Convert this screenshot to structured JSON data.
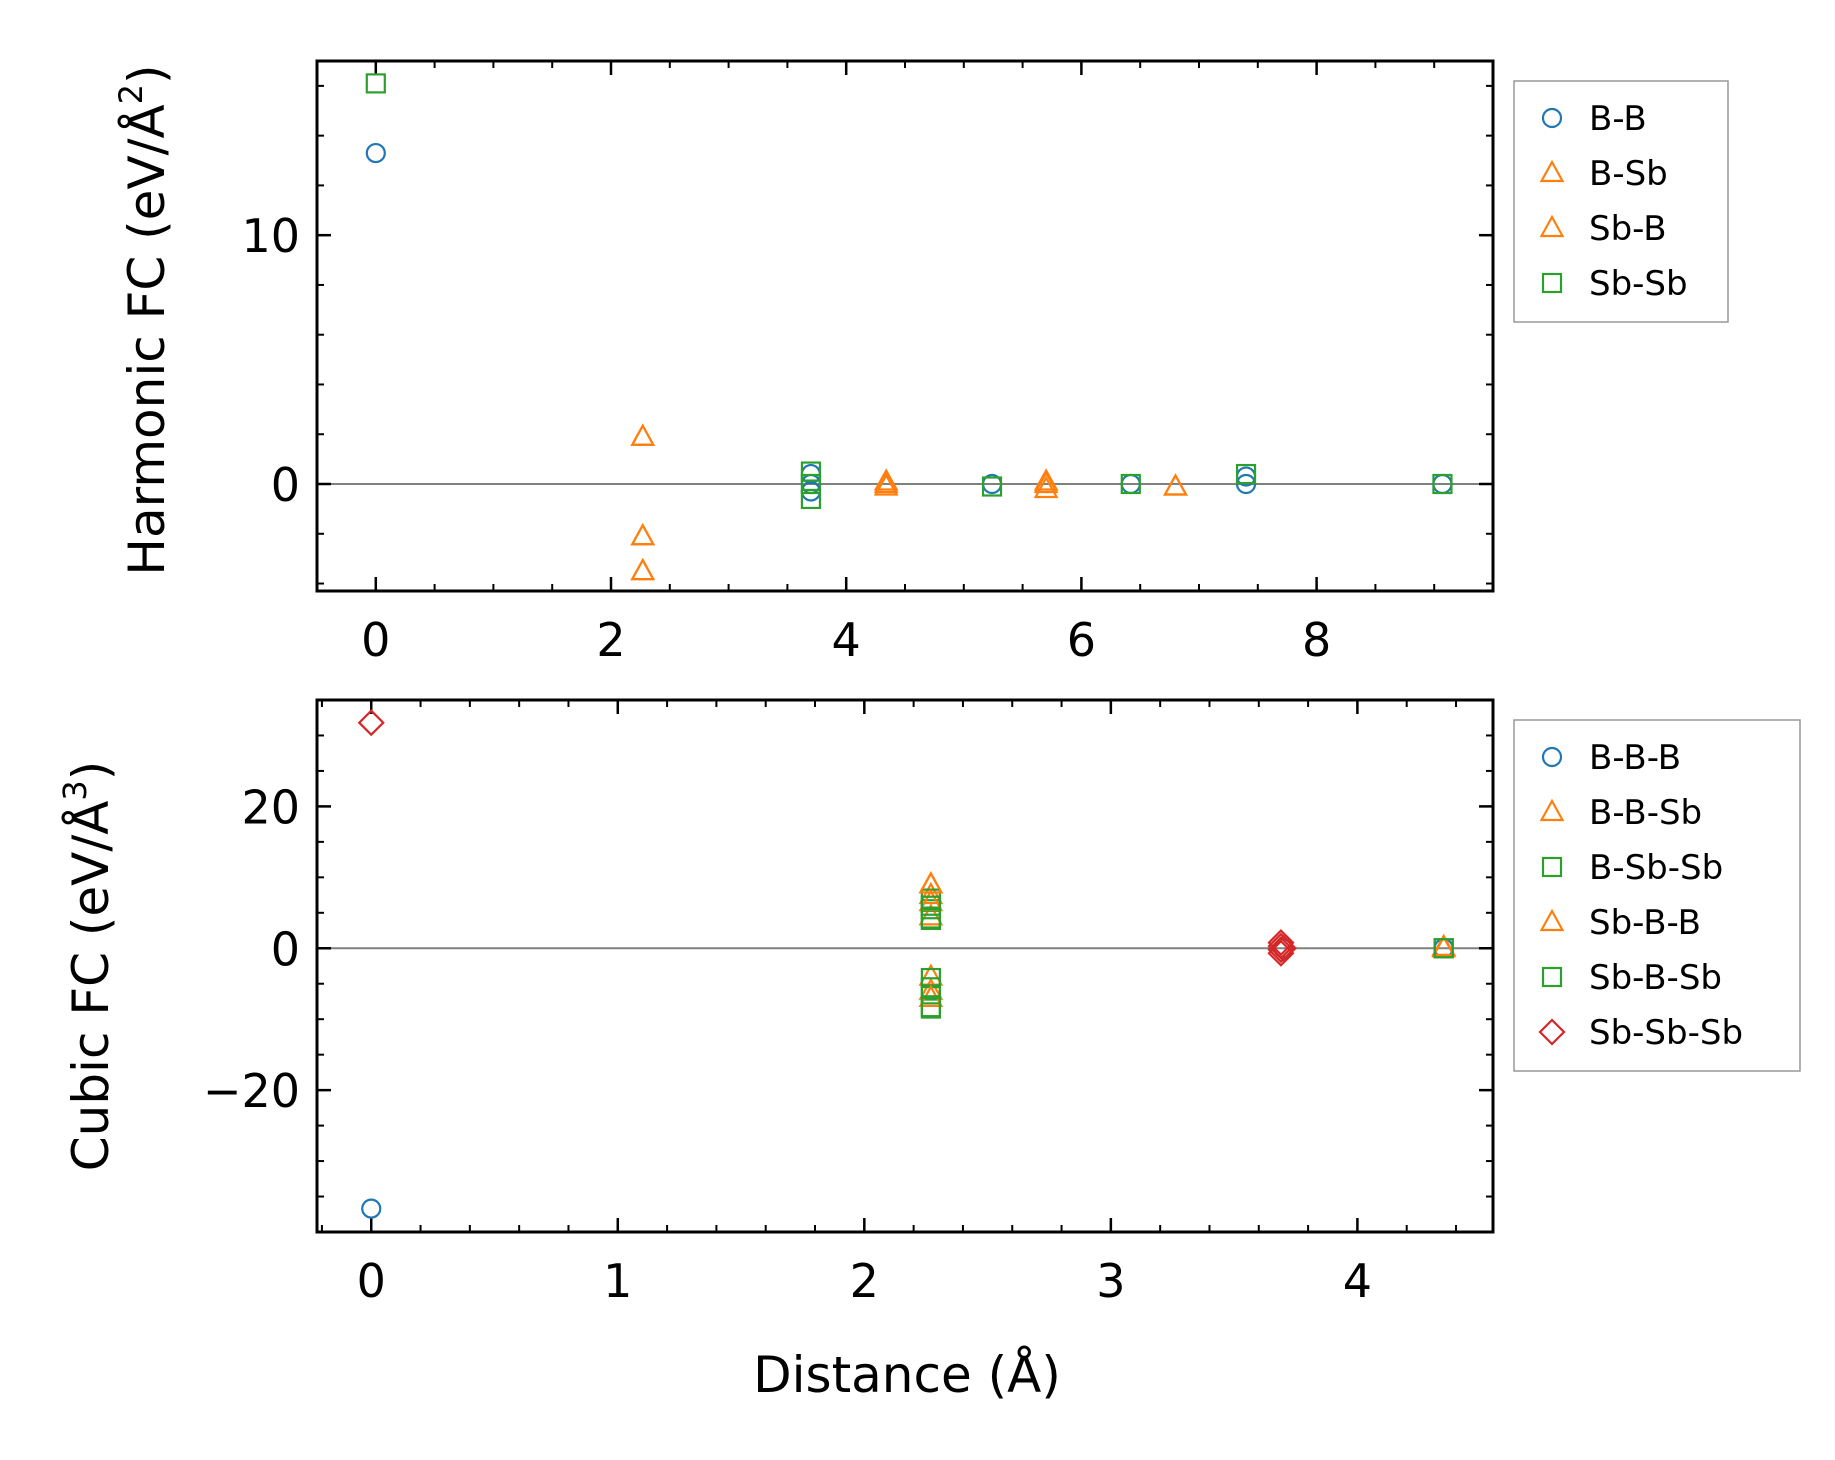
{
  "colors": {
    "blue": "#1f77b4",
    "orange": "#ff7f0e",
    "green": "#2ca02c",
    "red": "#d62728"
  },
  "chart_data": [
    {
      "type": "scatter",
      "title": "",
      "xlabel": "",
      "ylabel": "Harmonic FC (eV/Å²)",
      "ylabel_main": "Harmonic FC (eV/Å",
      "ylabel_sup": "2",
      "ylabel_close": ")",
      "xlim": [
        -0.5,
        9.5
      ],
      "ylim": [
        -4.3,
        17.0
      ],
      "xticks": [
        0,
        2,
        4,
        6,
        8
      ],
      "xtick_labels": [
        "0",
        "2",
        "4",
        "6",
        "8"
      ],
      "yticks": [
        0,
        10
      ],
      "ytick_labels": [
        "0",
        "10"
      ],
      "legend_position": "outside-right-top",
      "series": [
        {
          "name": "B-B",
          "marker": "circle",
          "color": "#1f77b4",
          "points": [
            [
              0,
              13.3
            ],
            [
              3.7,
              0.4
            ],
            [
              3.7,
              0.0
            ],
            [
              3.7,
              -0.3
            ],
            [
              5.24,
              0.0
            ],
            [
              6.42,
              0.0
            ],
            [
              7.4,
              0.3
            ],
            [
              7.4,
              0.0
            ],
            [
              9.07,
              0.0
            ]
          ]
        },
        {
          "name": "B-Sb",
          "marker": "triangle",
          "color": "#ff7f0e",
          "points": [
            [
              2.27,
              1.9
            ],
            [
              2.27,
              -2.1
            ],
            [
              2.27,
              -3.5
            ],
            [
              4.34,
              0.1
            ],
            [
              4.34,
              -0.1
            ],
            [
              5.7,
              0.1
            ],
            [
              5.7,
              -0.2
            ],
            [
              6.8,
              -0.1
            ]
          ]
        },
        {
          "name": "Sb-B",
          "marker": "triangle",
          "color": "#ff7f0e",
          "points": [
            [
              2.27,
              1.9
            ],
            [
              2.27,
              -2.1
            ],
            [
              2.27,
              -3.5
            ],
            [
              4.34,
              0.0
            ],
            [
              5.7,
              0.0
            ],
            [
              6.8,
              -0.1
            ]
          ]
        },
        {
          "name": "Sb-Sb",
          "marker": "square",
          "color": "#2ca02c",
          "points": [
            [
              0,
              16.1
            ],
            [
              3.7,
              0.5
            ],
            [
              3.7,
              0.0
            ],
            [
              3.7,
              -0.6
            ],
            [
              5.24,
              -0.1
            ],
            [
              6.42,
              0.0
            ],
            [
              7.4,
              0.4
            ],
            [
              9.07,
              0.0
            ]
          ]
        }
      ]
    },
    {
      "type": "scatter",
      "title": "",
      "xlabel": "Distance (Å)",
      "ylabel": "Cubic FC (eV/Å³)",
      "ylabel_main": "Cubic FC (eV/Å",
      "ylabel_sup": "3",
      "ylabel_close": ")",
      "xlim": [
        -0.22,
        4.55
      ],
      "ylim": [
        -40,
        35
      ],
      "xticks": [
        0,
        1,
        2,
        3,
        4
      ],
      "xtick_labels": [
        "0",
        "1",
        "2",
        "3",
        "4"
      ],
      "yticks": [
        -20,
        0,
        20
      ],
      "ytick_labels": [
        "−20",
        "0",
        "20"
      ],
      "legend_position": "outside-right-top",
      "series": [
        {
          "name": "B-B-B",
          "marker": "circle",
          "color": "#1f77b4",
          "points": [
            [
              0,
              -36.7
            ],
            [
              3.7,
              0.0
            ],
            [
              4.35,
              0.0
            ]
          ]
        },
        {
          "name": "B-B-Sb",
          "marker": "triangle",
          "color": "#ff7f0e",
          "points": [
            [
              2.27,
              9.0
            ],
            [
              2.27,
              7.5
            ],
            [
              2.27,
              4.5
            ],
            [
              2.27,
              -4.0
            ],
            [
              2.27,
              -6.0
            ],
            [
              4.35,
              0.2
            ]
          ]
        },
        {
          "name": "B-Sb-Sb",
          "marker": "square",
          "color": "#2ca02c",
          "points": [
            [
              2.27,
              7.0
            ],
            [
              2.27,
              5.5
            ],
            [
              2.27,
              4.0
            ],
            [
              2.27,
              -4.2
            ],
            [
              2.27,
              -6.5
            ],
            [
              2.27,
              -8.5
            ],
            [
              4.35,
              0.0
            ]
          ]
        },
        {
          "name": "Sb-B-B",
          "marker": "triangle",
          "color": "#ff7f0e",
          "points": [
            [
              2.27,
              9.0
            ],
            [
              2.27,
              6.5
            ],
            [
              2.27,
              -7.0
            ],
            [
              4.35,
              0.0
            ]
          ]
        },
        {
          "name": "Sb-B-Sb",
          "marker": "square",
          "color": "#2ca02c",
          "points": [
            [
              2.27,
              6.0
            ],
            [
              2.27,
              4.2
            ],
            [
              2.27,
              -5.5
            ],
            [
              2.27,
              -8.3
            ],
            [
              4.35,
              0.0
            ]
          ]
        },
        {
          "name": "Sb-Sb-Sb",
          "marker": "diamond",
          "color": "#d62728",
          "points": [
            [
              0,
              31.8
            ],
            [
              3.69,
              0.8
            ],
            [
              3.69,
              0.3
            ],
            [
              3.69,
              -0.2
            ],
            [
              3.69,
              -0.7
            ],
            [
              3.7,
              0.0
            ]
          ]
        }
      ]
    }
  ]
}
